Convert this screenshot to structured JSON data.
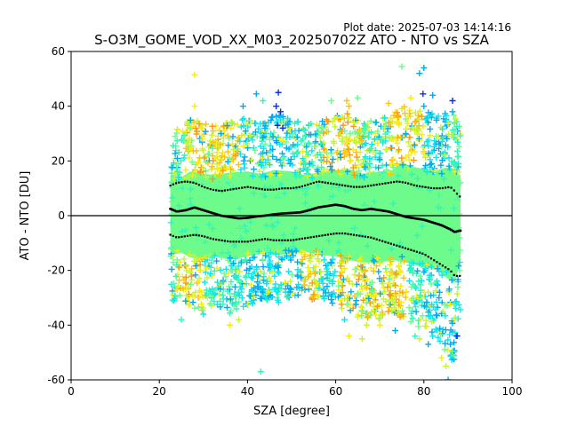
{
  "figure": {
    "plot_date": "Plot date: 2025-07-03 14:14:16",
    "title": "S-O3M_GOME_VOD_XX_M03_20250702Z ATO - NTO vs SZA"
  },
  "chart_data": {
    "type": "scatter",
    "title": "S-O3M_GOME_VOD_XX_M03_20250702Z ATO - NTO vs SZA",
    "xlabel": "SZA [degree]",
    "ylabel": "ATO - NTO [DU]",
    "xlim": [
      0,
      100
    ],
    "ylim": [
      -60,
      60
    ],
    "xticks": [
      0,
      20,
      40,
      60,
      80,
      100
    ],
    "yticks": [
      -60,
      -40,
      -20,
      0,
      20,
      40,
      60
    ],
    "grid": false,
    "legend": "none",
    "marker": "plus",
    "colors": {
      "blue": "#0a2ee6",
      "deep_sky": "#05a9f0",
      "cyan": "#0ee6ee",
      "aquamarine": "#33f5b5",
      "spring_green": "#6dfb8c",
      "chartreuse": "#c8f52a",
      "yellow": "#f6ec12",
      "gold": "#fbc30f",
      "orange": "#f99a10",
      "mean_line": "#000000"
    },
    "cloud_upper_envelope": [
      [
        22.5,
        33
      ],
      [
        25,
        31
      ],
      [
        27,
        36
      ],
      [
        30,
        34
      ],
      [
        33,
        33
      ],
      [
        36,
        35
      ],
      [
        40,
        36
      ],
      [
        43,
        34
      ],
      [
        46,
        37
      ],
      [
        50,
        36
      ],
      [
        53,
        33
      ],
      [
        56,
        35
      ],
      [
        60,
        37
      ],
      [
        63,
        38
      ],
      [
        66,
        34
      ],
      [
        70,
        36
      ],
      [
        73,
        37
      ],
      [
        75,
        44
      ],
      [
        77,
        40
      ],
      [
        80,
        38
      ],
      [
        83,
        37
      ],
      [
        86,
        40
      ],
      [
        88,
        33
      ]
    ],
    "cloud_lower_envelope": [
      [
        22.5,
        -32
      ],
      [
        25,
        -30
      ],
      [
        27,
        -34
      ],
      [
        30,
        -35
      ],
      [
        33,
        -33
      ],
      [
        36,
        -36
      ],
      [
        40,
        -33
      ],
      [
        43,
        -31
      ],
      [
        46,
        -32
      ],
      [
        50,
        -31
      ],
      [
        53,
        -29
      ],
      [
        56,
        -32
      ],
      [
        60,
        -33
      ],
      [
        63,
        -36
      ],
      [
        66,
        -38
      ],
      [
        70,
        -38
      ],
      [
        73,
        -36
      ],
      [
        76,
        -38
      ],
      [
        80,
        -42
      ],
      [
        83,
        -44
      ],
      [
        85,
        -50
      ],
      [
        87,
        -55
      ],
      [
        88,
        -40
      ]
    ],
    "mean_line": {
      "x": [
        22.5,
        24,
        26,
        28,
        30,
        32,
        34,
        36,
        38,
        40,
        42,
        44,
        46,
        48,
        50,
        52,
        54,
        56,
        58,
        60,
        62,
        64,
        66,
        68,
        70,
        72,
        74,
        76,
        78,
        80,
        82,
        84,
        86,
        87,
        88
      ],
      "y": [
        2.5,
        1.5,
        2,
        3,
        2,
        1,
        0,
        -0.5,
        -1,
        -0.8,
        -0.3,
        0,
        0.5,
        0.8,
        1,
        1.2,
        2,
        3,
        3.5,
        4,
        3.5,
        2.5,
        2,
        2.5,
        2,
        1.5,
        0.5,
        -0.5,
        -1,
        -1.5,
        -2.5,
        -3.5,
        -5,
        -6,
        -5.5
      ]
    },
    "upper_dotted": {
      "x": [
        22.5,
        24,
        26,
        28,
        30,
        32,
        34,
        36,
        38,
        40,
        42,
        44,
        46,
        48,
        50,
        52,
        54,
        56,
        58,
        60,
        62,
        64,
        66,
        68,
        70,
        72,
        74,
        76,
        78,
        80,
        82,
        84,
        86,
        87,
        88
      ],
      "y": [
        11,
        12,
        12.5,
        12,
        10.5,
        9.5,
        9,
        9.5,
        10,
        10.5,
        10,
        9.5,
        9.5,
        10,
        10,
        10.5,
        11.5,
        12.5,
        12,
        11.5,
        11,
        10.5,
        10.5,
        11,
        11.5,
        12,
        12.5,
        12,
        11,
        10.5,
        10,
        10,
        10.5,
        9,
        7
      ]
    },
    "lower_dotted": {
      "x": [
        22.5,
        24,
        26,
        28,
        30,
        32,
        34,
        36,
        38,
        40,
        42,
        44,
        46,
        48,
        50,
        52,
        54,
        56,
        58,
        60,
        62,
        64,
        66,
        68,
        70,
        72,
        74,
        76,
        78,
        80,
        82,
        84,
        86,
        87,
        88
      ],
      "y": [
        -7,
        -8,
        -7.5,
        -7,
        -7.5,
        -8.5,
        -9,
        -9.5,
        -9.5,
        -9.5,
        -9,
        -8.5,
        -9,
        -9,
        -9,
        -8.5,
        -8,
        -7.5,
        -7,
        -6.5,
        -6.5,
        -7,
        -7.5,
        -8,
        -9,
        -10,
        -11,
        -12,
        -13,
        -14,
        -16,
        -18,
        -20,
        -22,
        -22
      ]
    },
    "zero_line": 0,
    "outliers": [
      [
        28,
        51.5,
        "yellow"
      ],
      [
        75,
        54.5,
        "spring_green"
      ],
      [
        80,
        54,
        "deep_sky"
      ],
      [
        79,
        52,
        "deep_sky"
      ],
      [
        47,
        45,
        "blue"
      ],
      [
        46.5,
        40,
        "blue"
      ],
      [
        47.5,
        38,
        "blue"
      ],
      [
        46.8,
        33,
        "blue"
      ],
      [
        48,
        32,
        "blue"
      ],
      [
        79.8,
        44.5,
        "blue"
      ],
      [
        86.5,
        42,
        "blue"
      ],
      [
        42,
        44.5,
        "deep_sky"
      ],
      [
        43.5,
        42,
        "aquamarine"
      ],
      [
        59,
        42,
        "spring_green"
      ],
      [
        62.5,
        42,
        "gold"
      ],
      [
        65,
        43,
        "spring_green"
      ],
      [
        77,
        43,
        "yellow"
      ],
      [
        72,
        41,
        "gold"
      ],
      [
        28,
        40,
        "yellow"
      ],
      [
        39,
        40,
        "deep_sky"
      ],
      [
        63,
        40,
        "gold"
      ],
      [
        82,
        44,
        "deep_sky"
      ],
      [
        86.5,
        38,
        "deep_sky"
      ],
      [
        80,
        40,
        "deep_sky"
      ],
      [
        43,
        -57,
        "aquamarine"
      ],
      [
        63,
        -44,
        "yellow"
      ],
      [
        66,
        -45,
        "chartreuse"
      ],
      [
        73.5,
        -42,
        "deep_sky"
      ],
      [
        81,
        -47,
        "deep_sky"
      ],
      [
        85.5,
        -60,
        "deep_sky"
      ],
      [
        85,
        -55,
        "chartreuse"
      ],
      [
        84,
        -52,
        "yellow"
      ],
      [
        79,
        -45,
        "chartreuse"
      ],
      [
        36,
        -40,
        "yellow"
      ],
      [
        38,
        -38,
        "chartreuse"
      ],
      [
        25,
        -38,
        "aquamarine"
      ],
      [
        30,
        -36,
        "cyan"
      ],
      [
        67,
        -40,
        "chartreuse"
      ],
      [
        70,
        -40,
        "yellow"
      ],
      [
        62,
        -38,
        "cyan"
      ],
      [
        86,
        -47,
        "deep_sky"
      ],
      [
        87.5,
        -44,
        "blue"
      ],
      [
        78,
        -44,
        "aquamarine"
      ],
      [
        82,
        -44,
        "cyan"
      ]
    ]
  }
}
